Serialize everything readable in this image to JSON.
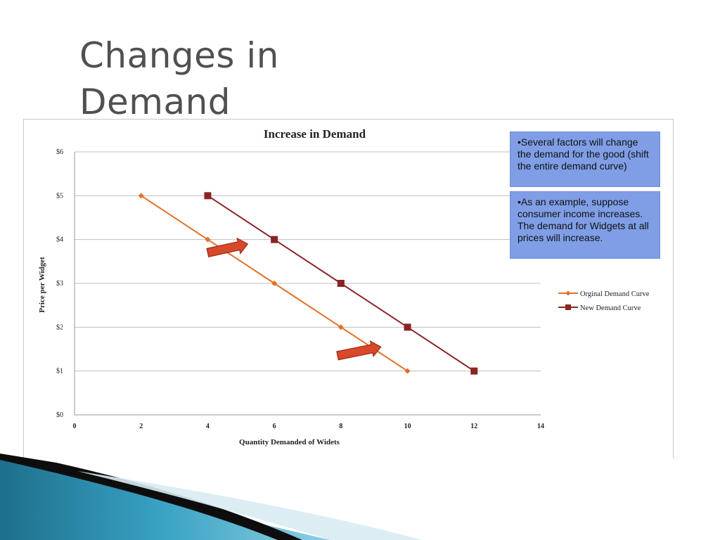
{
  "slide": {
    "title_line1": "Changes in",
    "title_line2": "Demand"
  },
  "callouts": [
    {
      "text": "•Several factors will change the demand for the good (shift the entire demand curve)"
    },
    {
      "text": "•As an example, suppose consumer income increases. The demand for Widgets at all prices will increase."
    }
  ],
  "colors": {
    "original": "#e0712a",
    "new": "#8b2424",
    "arrow_fill": "#d8492a",
    "arrow_stroke": "#9a2a14",
    "grid": "#bfbfbf",
    "callout_bg": "#7f9ee6",
    "title": "#505050"
  },
  "chart_data": {
    "type": "line",
    "title": "Increase in Demand",
    "xlabel": "Quantity Demanded of Widets",
    "ylabel": "Price per Widget",
    "xlim": [
      0,
      14
    ],
    "ylim": [
      0,
      6
    ],
    "x_ticks": [
      0,
      2,
      4,
      6,
      8,
      10,
      12,
      14
    ],
    "y_ticks": [
      {
        "value": 0,
        "label": "$0"
      },
      {
        "value": 1,
        "label": "$1"
      },
      {
        "value": 2,
        "label": "$2"
      },
      {
        "value": 3,
        "label": "$3"
      },
      {
        "value": 4,
        "label": "$4"
      },
      {
        "value": 5,
        "label": "$5"
      },
      {
        "value": 6,
        "label": "$6"
      }
    ],
    "grid": true,
    "legend_position": "right",
    "series": [
      {
        "name": "Orginal Demand Curve",
        "marker": "diamond",
        "x": [
          2,
          4,
          6,
          8,
          10
        ],
        "y": [
          5,
          4,
          3,
          2,
          1
        ]
      },
      {
        "name": "New Demand Curve",
        "marker": "square",
        "x": [
          4,
          6,
          8,
          10,
          12
        ],
        "y": [
          5,
          4,
          3,
          2,
          1
        ]
      }
    ],
    "annotations": [
      {
        "type": "arrow",
        "from": [
          4,
          3.7
        ],
        "to": [
          5.2,
          3.9
        ]
      },
      {
        "type": "arrow",
        "from": [
          7.9,
          1.35
        ],
        "to": [
          9.2,
          1.55
        ]
      }
    ]
  }
}
